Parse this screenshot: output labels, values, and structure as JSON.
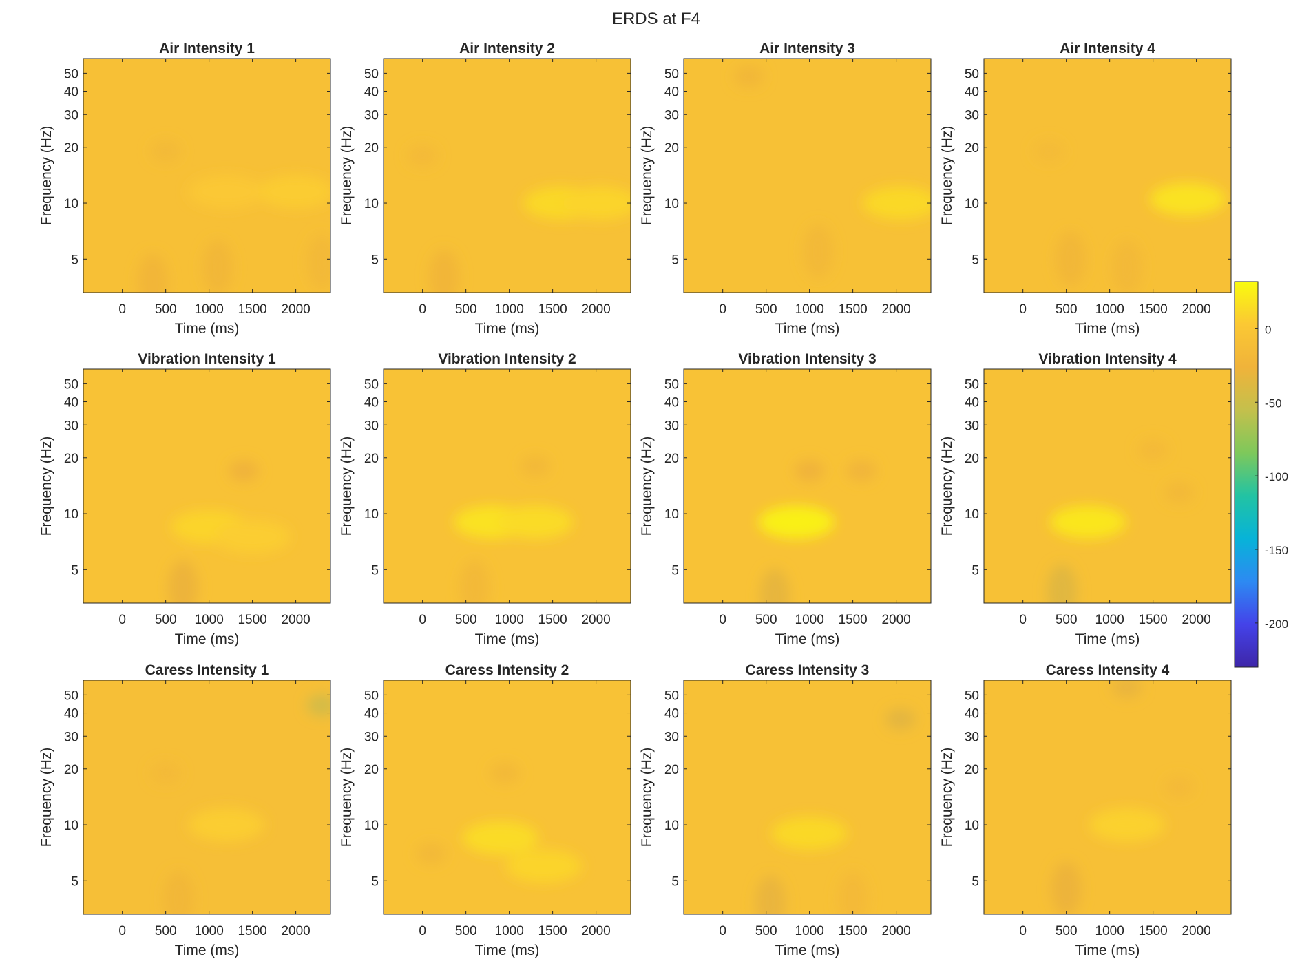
{
  "figure_title": "ERDS at F4",
  "colors": {
    "axis": "#262626",
    "colormap": [
      "#3e26a8",
      "#4443e9",
      "#2d8af2",
      "#07b3d8",
      "#22c3a3",
      "#7ec85b",
      "#c4c04c",
      "#f0b33a",
      "#fbc834",
      "#f9fb0e"
    ]
  },
  "chart_data": [
    {
      "type": "heatmap",
      "title": "Air Intensity 1",
      "xlabel": "Time (ms)",
      "ylabel": "Frequency (Hz)",
      "x_ticks": [
        0,
        500,
        1000,
        1500,
        2000
      ],
      "y_ticks": [
        5,
        10,
        20,
        30,
        40,
        50
      ],
      "y_scale": "log",
      "xlim": [
        -450,
        2400
      ],
      "ylim": [
        3.3,
        60
      ],
      "background_value": -8,
      "features": [
        {
          "t": 1200,
          "f": 11.5,
          "value": 3
        },
        {
          "t": 2000,
          "f": 11.5,
          "value": 5
        },
        {
          "t": 350,
          "f": 3.8,
          "value": -22
        },
        {
          "t": 1100,
          "f": 4.5,
          "value": -20
        },
        {
          "t": 2300,
          "f": 4.8,
          "value": -18
        },
        {
          "t": 500,
          "f": 19,
          "value": -17
        }
      ]
    },
    {
      "type": "heatmap",
      "title": "Air Intensity 2",
      "xlabel": "Time (ms)",
      "ylabel": "Frequency (Hz)",
      "x_ticks": [
        0,
        500,
        1000,
        1500,
        2000
      ],
      "y_ticks": [
        5,
        10,
        20,
        30,
        40,
        50
      ],
      "y_scale": "log",
      "xlim": [
        -450,
        2400
      ],
      "ylim": [
        3.3,
        60
      ],
      "background_value": -7,
      "features": [
        {
          "t": 1600,
          "f": 10,
          "value": 12
        },
        {
          "t": 2050,
          "f": 10,
          "value": 10
        },
        {
          "t": 250,
          "f": 4,
          "value": -22
        },
        {
          "t": 0,
          "f": 18,
          "value": -16
        }
      ]
    },
    {
      "type": "heatmap",
      "title": "Air Intensity 3",
      "xlabel": "Time (ms)",
      "ylabel": "Frequency (Hz)",
      "x_ticks": [
        0,
        500,
        1000,
        1500,
        2000
      ],
      "y_ticks": [
        5,
        10,
        20,
        30,
        40,
        50
      ],
      "y_scale": "log",
      "xlim": [
        -450,
        2400
      ],
      "ylim": [
        3.3,
        60
      ],
      "background_value": -7,
      "features": [
        {
          "t": 2050,
          "f": 10,
          "value": 12
        },
        {
          "t": 1100,
          "f": 5.5,
          "value": -18
        },
        {
          "t": 300,
          "f": 48,
          "value": -20
        }
      ]
    },
    {
      "type": "heatmap",
      "title": "Air Intensity 4",
      "xlabel": "Time (ms)",
      "ylabel": "Frequency (Hz)",
      "x_ticks": [
        0,
        500,
        1000,
        1500,
        2000
      ],
      "y_ticks": [
        5,
        10,
        20,
        30,
        40,
        50
      ],
      "y_scale": "log",
      "xlim": [
        -450,
        2400
      ],
      "ylim": [
        3.3,
        60
      ],
      "background_value": -8,
      "features": [
        {
          "t": 1900,
          "f": 10.5,
          "value": 18
        },
        {
          "t": 550,
          "f": 5,
          "value": -20
        },
        {
          "t": 1200,
          "f": 4.5,
          "value": -18
        },
        {
          "t": 300,
          "f": 19,
          "value": -15
        }
      ]
    },
    {
      "type": "heatmap",
      "title": "Vibration Intensity 1",
      "xlabel": "Time (ms)",
      "ylabel": "Frequency (Hz)",
      "x_ticks": [
        0,
        500,
        1000,
        1500,
        2000
      ],
      "y_ticks": [
        5,
        10,
        20,
        30,
        40,
        50
      ],
      "y_scale": "log",
      "xlim": [
        -450,
        2400
      ],
      "ylim": [
        3.3,
        60
      ],
      "background_value": -6,
      "features": [
        {
          "t": 1000,
          "f": 8.5,
          "value": 10
        },
        {
          "t": 1500,
          "f": 7.5,
          "value": 6
        },
        {
          "t": 700,
          "f": 4,
          "value": -28
        },
        {
          "t": 1400,
          "f": 17,
          "value": -26
        }
      ]
    },
    {
      "type": "heatmap",
      "title": "Vibration Intensity 2",
      "xlabel": "Time (ms)",
      "ylabel": "Frequency (Hz)",
      "x_ticks": [
        0,
        500,
        1000,
        1500,
        2000
      ],
      "y_ticks": [
        5,
        10,
        20,
        30,
        40,
        50
      ],
      "y_scale": "log",
      "xlim": [
        -450,
        2400
      ],
      "ylim": [
        3.3,
        60
      ],
      "background_value": -5,
      "features": [
        {
          "t": 800,
          "f": 9,
          "value": 18
        },
        {
          "t": 1300,
          "f": 9,
          "value": 14
        },
        {
          "t": 600,
          "f": 4,
          "value": -18
        },
        {
          "t": 1300,
          "f": 18,
          "value": -18
        }
      ]
    },
    {
      "type": "heatmap",
      "title": "Vibration Intensity 3",
      "xlabel": "Time (ms)",
      "ylabel": "Frequency (Hz)",
      "x_ticks": [
        0,
        500,
        1000,
        1500,
        2000
      ],
      "y_ticks": [
        5,
        10,
        20,
        30,
        40,
        50
      ],
      "y_scale": "log",
      "xlim": [
        -450,
        2400
      ],
      "ylim": [
        3.3,
        60
      ],
      "background_value": -5,
      "features": [
        {
          "t": 850,
          "f": 9,
          "value": 26
        },
        {
          "t": 600,
          "f": 3.6,
          "value": -32
        },
        {
          "t": 1000,
          "f": 17,
          "value": -26
        },
        {
          "t": 1600,
          "f": 17,
          "value": -24
        }
      ]
    },
    {
      "type": "heatmap",
      "title": "Vibration Intensity 4",
      "xlabel": "Time (ms)",
      "ylabel": "Frequency (Hz)",
      "x_ticks": [
        0,
        500,
        1000,
        1500,
        2000
      ],
      "y_ticks": [
        5,
        10,
        20,
        30,
        40,
        50
      ],
      "y_scale": "log",
      "xlim": [
        -450,
        2400
      ],
      "ylim": [
        3.3,
        60
      ],
      "background_value": -7,
      "features": [
        {
          "t": 750,
          "f": 9,
          "value": 20
        },
        {
          "t": 450,
          "f": 3.8,
          "value": -36
        },
        {
          "t": 1800,
          "f": 13,
          "value": -18
        },
        {
          "t": 1500,
          "f": 22,
          "value": -16
        }
      ]
    },
    {
      "type": "heatmap",
      "title": "Caress Intensity 1",
      "xlabel": "Time (ms)",
      "ylabel": "Frequency (Hz)",
      "x_ticks": [
        0,
        500,
        1000,
        1500,
        2000
      ],
      "y_ticks": [
        5,
        10,
        20,
        30,
        40,
        50
      ],
      "y_scale": "log",
      "xlim": [
        -450,
        2400
      ],
      "ylim": [
        3.3,
        60
      ],
      "background_value": -10,
      "features": [
        {
          "t": 1200,
          "f": 10,
          "value": 6
        },
        {
          "t": 2300,
          "f": 44,
          "value": -45
        },
        {
          "t": 650,
          "f": 4,
          "value": -20
        },
        {
          "t": 500,
          "f": 19,
          "value": -16
        }
      ]
    },
    {
      "type": "heatmap",
      "title": "Caress Intensity 2",
      "xlabel": "Time (ms)",
      "ylabel": "Frequency (Hz)",
      "x_ticks": [
        0,
        500,
        1000,
        1500,
        2000
      ],
      "y_ticks": [
        5,
        10,
        20,
        30,
        40,
        50
      ],
      "y_scale": "log",
      "xlim": [
        -450,
        2400
      ],
      "ylim": [
        3.3,
        60
      ],
      "background_value": -6,
      "features": [
        {
          "t": 900,
          "f": 8.5,
          "value": 14
        },
        {
          "t": 1400,
          "f": 6,
          "value": 10
        },
        {
          "t": 100,
          "f": 7,
          "value": -18
        },
        {
          "t": 950,
          "f": 19,
          "value": -18
        }
      ]
    },
    {
      "type": "heatmap",
      "title": "Caress Intensity 3",
      "xlabel": "Time (ms)",
      "ylabel": "Frequency (Hz)",
      "x_ticks": [
        0,
        500,
        1000,
        1500,
        2000
      ],
      "y_ticks": [
        5,
        10,
        20,
        30,
        40,
        50
      ],
      "y_scale": "log",
      "xlim": [
        -450,
        2400
      ],
      "ylim": [
        3.3,
        60
      ],
      "background_value": -7,
      "features": [
        {
          "t": 1000,
          "f": 9,
          "value": 12
        },
        {
          "t": 550,
          "f": 3.8,
          "value": -30
        },
        {
          "t": 2050,
          "f": 37,
          "value": -34
        },
        {
          "t": 1500,
          "f": 4,
          "value": -16
        }
      ]
    },
    {
      "type": "heatmap",
      "title": "Caress Intensity 4",
      "xlabel": "Time (ms)",
      "ylabel": "Frequency (Hz)",
      "x_ticks": [
        0,
        500,
        1000,
        1500,
        2000
      ],
      "y_ticks": [
        5,
        10,
        20,
        30,
        40,
        50
      ],
      "y_scale": "log",
      "xlim": [
        -450,
        2400
      ],
      "ylim": [
        3.3,
        60
      ],
      "background_value": -8,
      "features": [
        {
          "t": 1200,
          "f": 10,
          "value": 8
        },
        {
          "t": 500,
          "f": 4.5,
          "value": -28
        },
        {
          "t": 1200,
          "f": 55,
          "value": -30
        },
        {
          "t": 1800,
          "f": 16,
          "value": -16
        }
      ]
    }
  ],
  "colorbar": {
    "type": "colorbar",
    "range": [
      -230,
      32
    ],
    "ticks": [
      0,
      -50,
      -100,
      -150,
      -200
    ]
  }
}
